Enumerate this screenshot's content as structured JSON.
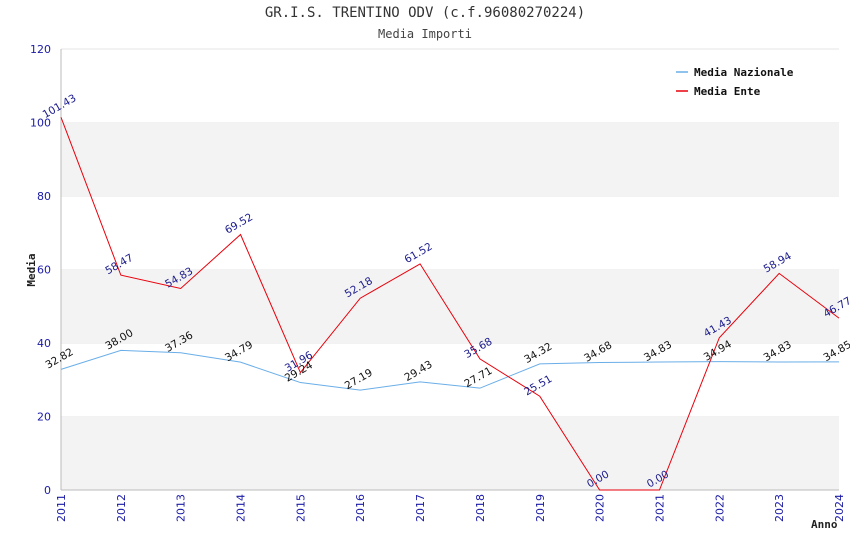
{
  "chart_data": {
    "type": "line",
    "title": "GR.I.S. TRENTINO ODV (c.f.96080270224)",
    "subtitle": "Media Importi",
    "xlabel": "Anno",
    "ylabel": "Media",
    "ylim": [
      0,
      120
    ],
    "yticks": [
      0,
      20,
      40,
      60,
      80,
      100,
      120
    ],
    "x": [
      "2011",
      "2012",
      "2013",
      "2014",
      "2015",
      "2016",
      "2017",
      "2018",
      "2019",
      "2020",
      "2021",
      "2022",
      "2023",
      "2024"
    ],
    "legend_position": "top-right",
    "grid": true,
    "series": [
      {
        "name": "Media Nazionale",
        "color": "#6aaee8",
        "values": [
          32.82,
          38.0,
          37.36,
          34.79,
          29.24,
          27.19,
          29.43,
          27.71,
          34.32,
          34.68,
          34.83,
          34.94,
          34.83,
          34.85
        ],
        "labels": [
          "32.82",
          "38.00",
          "37.36",
          "34.79",
          "29.24",
          "27.19",
          "29.43",
          "27.71",
          "34.32",
          "34.68",
          "34.83",
          "34.94",
          "34.83",
          "34.85"
        ]
      },
      {
        "name": "Media Ente",
        "color": "#e8000b",
        "values": [
          101.43,
          58.47,
          54.83,
          69.52,
          31.96,
          52.18,
          61.52,
          35.68,
          25.51,
          0.0,
          0.0,
          41.43,
          58.94,
          46.77
        ],
        "labels": [
          "101.43",
          "58.47",
          "54.83",
          "69.52",
          "31.96",
          "52.18",
          "61.52",
          "35.68",
          "25.51",
          "0.00",
          "0.00",
          "41.43",
          "58.94",
          "46.77"
        ]
      }
    ]
  }
}
